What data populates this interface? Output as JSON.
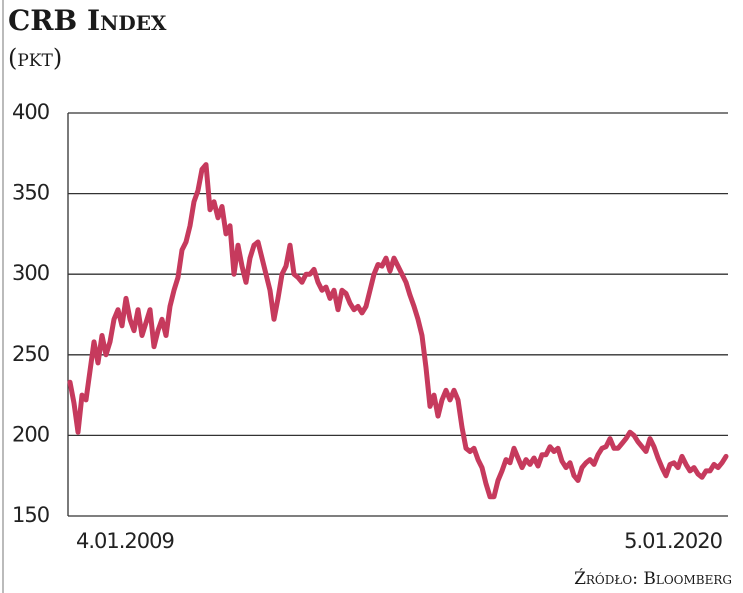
{
  "chart_data": {
    "type": "line",
    "title": "CRB Index",
    "subtitle": "(pkt)",
    "source": "Źródło: Bloomberg",
    "categories": [
      "4.01.2009",
      null,
      null,
      null,
      null,
      null,
      null,
      null,
      null,
      null,
      null,
      null,
      null,
      null,
      null,
      null,
      null,
      null,
      null,
      null,
      null,
      null,
      null,
      null,
      null,
      null,
      null,
      null,
      null,
      null,
      null,
      null,
      null,
      null,
      null,
      null,
      null,
      null,
      null,
      null,
      null,
      null,
      null,
      null,
      null,
      null,
      null,
      null,
      null,
      null,
      null,
      null,
      null,
      null,
      null,
      null,
      null,
      null,
      null,
      null,
      null,
      null,
      null,
      null,
      null,
      null,
      null,
      null,
      null,
      null,
      null,
      null,
      null,
      null,
      null,
      null,
      null,
      null,
      null,
      null,
      null,
      null,
      null,
      null,
      null,
      null,
      null,
      null,
      null,
      null,
      null,
      null,
      null,
      null,
      null,
      null,
      null,
      null,
      null,
      null,
      null,
      null,
      null,
      null,
      null,
      null,
      null,
      null,
      null,
      null,
      null,
      null,
      null,
      null,
      null,
      null,
      null,
      null,
      null,
      null,
      null,
      null,
      null,
      null,
      null,
      null,
      null,
      null,
      null,
      null,
      null,
      null,
      null,
      null,
      null,
      null,
      null,
      null,
      null,
      null,
      null,
      null,
      null,
      null,
      null,
      null,
      null,
      null,
      null,
      null,
      null,
      null,
      null,
      null,
      null,
      null,
      null,
      null,
      null,
      null,
      null,
      null,
      null,
      null,
      "5.01.2020"
    ],
    "series": [
      {
        "name": "CRB Index",
        "color": "#c63a5d",
        "values": [
          233,
          220,
          202,
          225,
          222,
          240,
          258,
          245,
          262,
          250,
          258,
          272,
          278,
          268,
          285,
          272,
          265,
          278,
          262,
          270,
          278,
          255,
          265,
          272,
          262,
          280,
          290,
          298,
          315,
          320,
          330,
          345,
          352,
          365,
          368,
          340,
          345,
          335,
          342,
          325,
          330,
          300,
          318,
          305,
          295,
          310,
          318,
          320,
          310,
          300,
          290,
          272,
          285,
          300,
          305,
          318,
          300,
          298,
          295,
          300,
          300,
          303,
          295,
          290,
          292,
          285,
          290,
          278,
          290,
          288,
          282,
          278,
          280,
          276,
          280,
          290,
          300,
          306,
          305,
          310,
          302,
          310,
          305,
          300,
          295,
          287,
          280,
          272,
          262,
          242,
          218,
          225,
          212,
          222,
          228,
          222,
          228,
          222,
          205,
          192,
          190,
          192,
          185,
          180,
          170,
          162,
          162,
          172,
          178,
          185,
          183,
          192,
          186,
          180,
          185,
          182,
          186,
          181,
          188,
          188,
          193,
          190,
          192,
          184,
          180,
          183,
          175,
          172,
          180,
          183,
          185,
          182,
          188,
          192,
          193,
          198,
          192,
          192,
          195,
          198,
          202,
          200,
          196,
          193,
          190,
          198,
          193,
          186,
          180,
          175,
          182,
          183,
          180,
          187,
          182,
          178,
          180,
          176,
          174,
          178,
          178,
          182,
          180,
          183,
          187
        ]
      }
    ],
    "ylim": [
      150,
      400
    ],
    "yticks": [
      150,
      200,
      250,
      300,
      350,
      400
    ],
    "grid": true
  }
}
